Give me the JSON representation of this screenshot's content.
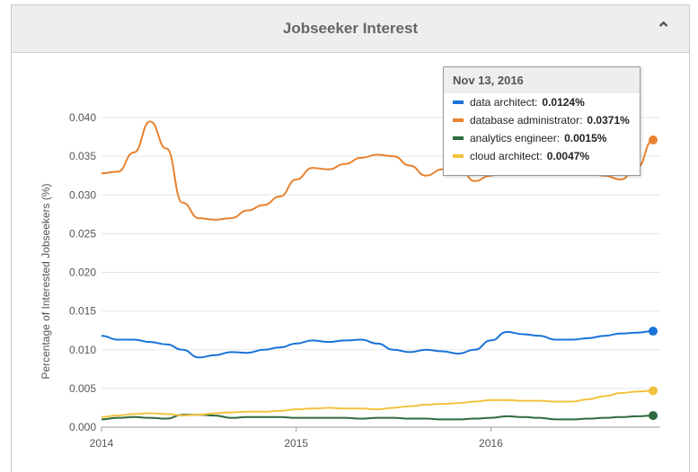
{
  "panel": {
    "title": "Jobseeker Interest",
    "collapse_icon": "chevron-up-icon"
  },
  "tooltip": {
    "date": "Nov 13, 2016",
    "items": [
      {
        "label": "data architect",
        "value": "0.0124%",
        "color": "#1a73d9"
      },
      {
        "label": "database administrator",
        "value": "0.0371%",
        "color": "#e8822f"
      },
      {
        "label": "analytics engineer",
        "value": "0.0015%",
        "color": "#2e6b3f"
      },
      {
        "label": "cloud architect",
        "value": "0.0047%",
        "color": "#f2c23e"
      }
    ]
  },
  "chart_data": {
    "type": "line",
    "ylabel": "Percentage of Interested Jobseekers (%)",
    "xlabel": "",
    "ylim": [
      0,
      0.04
    ],
    "yticks": [
      "0.000",
      "0.005",
      "0.010",
      "0.015",
      "0.020",
      "0.025",
      "0.030",
      "0.035",
      "0.040"
    ],
    "xticks": [
      "2014",
      "2015",
      "2016"
    ],
    "grid": true,
    "x_start": "2014-01",
    "x_end": "2016-11",
    "series": [
      {
        "name": "data architect",
        "color": "#1a73d9",
        "values": [
          0.0118,
          0.0113,
          0.0113,
          0.011,
          0.0107,
          0.01,
          0.009,
          0.0093,
          0.0097,
          0.0096,
          0.01,
          0.0103,
          0.0108,
          0.0112,
          0.011,
          0.0112,
          0.0113,
          0.0108,
          0.01,
          0.0097,
          0.01,
          0.0098,
          0.0095,
          0.01,
          0.0112,
          0.0123,
          0.012,
          0.0118,
          0.0113,
          0.0113,
          0.0115,
          0.0118,
          0.0121,
          0.0122,
          0.0124
        ]
      },
      {
        "name": "database administrator",
        "color": "#e8822f",
        "values": [
          0.0328,
          0.033,
          0.0355,
          0.0395,
          0.036,
          0.029,
          0.027,
          0.0268,
          0.027,
          0.028,
          0.0287,
          0.0298,
          0.032,
          0.0335,
          0.0333,
          0.034,
          0.0348,
          0.0352,
          0.035,
          0.0338,
          0.0325,
          0.0333,
          0.0337,
          0.0318,
          0.0325,
          0.0335,
          0.034,
          0.0338,
          0.0335,
          0.0333,
          0.0328,
          0.0325,
          0.032,
          0.0335,
          0.0371
        ]
      },
      {
        "name": "analytics engineer",
        "color": "#2e6b3f",
        "values": [
          0.001,
          0.0012,
          0.0013,
          0.0012,
          0.0011,
          0.0016,
          0.0016,
          0.0015,
          0.0012,
          0.0013,
          0.0013,
          0.0013,
          0.0012,
          0.0012,
          0.0012,
          0.0012,
          0.0011,
          0.0012,
          0.0012,
          0.0011,
          0.0011,
          0.001,
          0.001,
          0.0011,
          0.0012,
          0.0014,
          0.0013,
          0.0012,
          0.001,
          0.001,
          0.0011,
          0.0012,
          0.0013,
          0.0014,
          0.0015
        ]
      },
      {
        "name": "cloud architect",
        "color": "#f2c23e",
        "values": [
          0.0013,
          0.0015,
          0.0017,
          0.0018,
          0.0017,
          0.0015,
          0.0016,
          0.0018,
          0.0019,
          0.002,
          0.002,
          0.0021,
          0.0023,
          0.0024,
          0.0025,
          0.0024,
          0.0024,
          0.0023,
          0.0025,
          0.0027,
          0.0029,
          0.003,
          0.0031,
          0.0033,
          0.0035,
          0.0035,
          0.0034,
          0.0034,
          0.0033,
          0.0033,
          0.0036,
          0.004,
          0.0044,
          0.0046,
          0.0047
        ]
      }
    ]
  }
}
